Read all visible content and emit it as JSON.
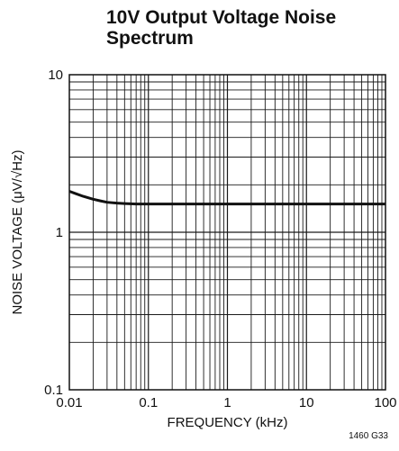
{
  "chart_data": {
    "type": "line",
    "title_line1": "10V Output Voltage Noise",
    "title_line2": "Spectrum",
    "xlabel": "FREQUENCY (kHz)",
    "ylabel": "NOISE VOLTAGE (μV/√Hz)",
    "x_scale": "log",
    "y_scale": "log",
    "xlim": [
      0.01,
      100
    ],
    "ylim": [
      0.1,
      10
    ],
    "x_ticks": [
      "0.01",
      "0.1",
      "1",
      "10",
      "100"
    ],
    "y_ticks": [
      "10",
      "1",
      "0.1"
    ],
    "grid": true,
    "series": [
      {
        "x": [
          0.01,
          0.012,
          0.015,
          0.02,
          0.025,
          0.03,
          0.04,
          0.05,
          0.07,
          0.1,
          0.2,
          0.5,
          1,
          2,
          5,
          10,
          20,
          50,
          100
        ],
        "y": [
          1.82,
          1.76,
          1.69,
          1.62,
          1.58,
          1.55,
          1.53,
          1.52,
          1.51,
          1.51,
          1.51,
          1.51,
          1.51,
          1.51,
          1.51,
          1.51,
          1.51,
          1.51,
          1.51
        ]
      }
    ],
    "figure_code": "1460 G33",
    "colors": {
      "line": "#111111",
      "grid": "#1a1a1a"
    }
  }
}
